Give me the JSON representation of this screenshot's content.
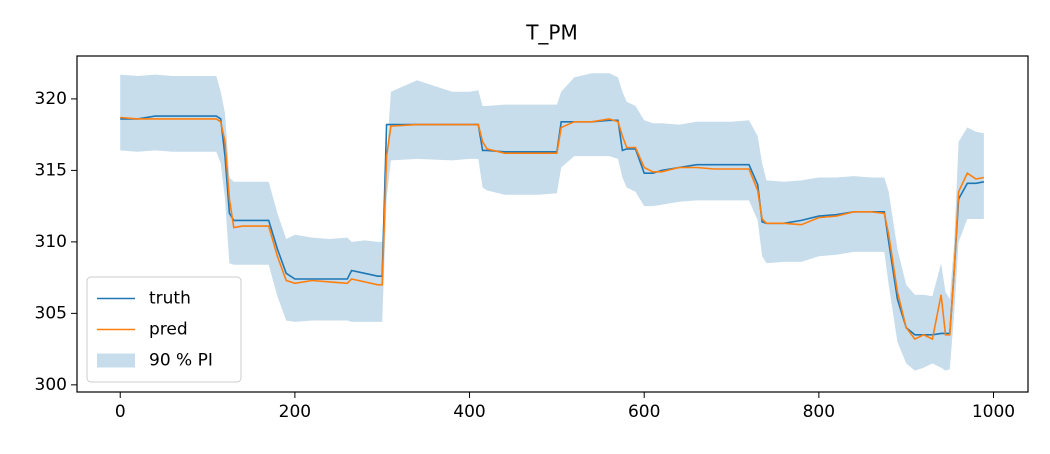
{
  "chart_data": {
    "type": "line",
    "title": "T_PM",
    "x": [
      0,
      20,
      40,
      60,
      80,
      100,
      110,
      115,
      120,
      125,
      130,
      140,
      160,
      170,
      180,
      190,
      200,
      220,
      240,
      260,
      265,
      280,
      295,
      300,
      305,
      310,
      340,
      380,
      400,
      410,
      415,
      420,
      440,
      480,
      500,
      505,
      520,
      540,
      560,
      570,
      575,
      580,
      590,
      600,
      610,
      620,
      640,
      660,
      680,
      700,
      720,
      730,
      735,
      740,
      760,
      780,
      800,
      820,
      840,
      860,
      875,
      880,
      890,
      900,
      910,
      920,
      930,
      940,
      945,
      950,
      955,
      960,
      970,
      980,
      989
    ],
    "series": [
      {
        "name": "truth",
        "color": "#1f77b4",
        "values": [
          318.6,
          318.6,
          318.8,
          318.8,
          318.8,
          318.8,
          318.8,
          318.6,
          316,
          312,
          311.5,
          311.5,
          311.5,
          311.5,
          309.5,
          307.8,
          307.4,
          307.4,
          307.4,
          307.4,
          308.0,
          307.8,
          307.6,
          307.6,
          318.2,
          318.2,
          318.2,
          318.2,
          318.2,
          318.2,
          316.4,
          316.4,
          316.3,
          316.3,
          316.3,
          318.4,
          318.4,
          318.4,
          318.5,
          318.5,
          316.4,
          316.5,
          316.5,
          314.8,
          314.8,
          315.0,
          315.2,
          315.4,
          315.4,
          315.4,
          315.4,
          314,
          311.4,
          311.3,
          311.3,
          311.5,
          311.8,
          311.9,
          312.1,
          312.1,
          312.1,
          310,
          306,
          304,
          303.5,
          303.5,
          303.5,
          303.6,
          303.6,
          303.6,
          308,
          313,
          314.1,
          314.1,
          314.2
        ]
      },
      {
        "name": "pred",
        "color": "#ff7f0e",
        "values": [
          318.7,
          318.6,
          318.6,
          318.6,
          318.6,
          318.6,
          318.6,
          318.4,
          317,
          313,
          311,
          311.1,
          311.1,
          311.1,
          309,
          307.3,
          307.1,
          307.3,
          307.2,
          307.1,
          307.4,
          307.2,
          307.0,
          307.0,
          316,
          318.1,
          318.2,
          318.2,
          318.2,
          318.2,
          317,
          316.5,
          316.2,
          316.2,
          316.2,
          318.0,
          318.4,
          318.4,
          318.6,
          318.4,
          317.4,
          316.6,
          316.6,
          315.2,
          314.9,
          314.9,
          315.2,
          315.2,
          315.1,
          315.1,
          315.1,
          313.6,
          311.6,
          311.3,
          311.3,
          311.2,
          311.7,
          311.8,
          312.1,
          312.1,
          312.0,
          310.5,
          306.5,
          304,
          303.2,
          303.5,
          303.2,
          306.3,
          303.5,
          303.5,
          308,
          313.5,
          314.8,
          314.4,
          314.5
        ]
      }
    ],
    "band": {
      "name": "90 % PI",
      "color": "#1f77b4",
      "upper": [
        321.7,
        321.6,
        321.7,
        321.6,
        321.6,
        321.6,
        321.6,
        320.5,
        319,
        314.5,
        314.2,
        314.2,
        314.2,
        314.2,
        312,
        310.2,
        310.5,
        310.3,
        310.2,
        310.3,
        310.0,
        310.1,
        310.0,
        310.0,
        316,
        320.5,
        321.3,
        320.5,
        320.5,
        320.6,
        319.5,
        319.5,
        319.6,
        319.6,
        319.6,
        320.5,
        321.5,
        321.8,
        321.8,
        321.5,
        320.5,
        319.8,
        319.5,
        318.5,
        318.3,
        318.3,
        318.2,
        318.4,
        318.4,
        318.4,
        318.5,
        317.4,
        315.5,
        314.3,
        314.2,
        314.3,
        314.5,
        314.5,
        314.6,
        314.5,
        314.5,
        313.5,
        309.5,
        307,
        306.3,
        306.3,
        306.2,
        308.5,
        306.5,
        306,
        310,
        317,
        318.0,
        317.7,
        317.6
      ],
      "lower": [
        316.4,
        316.3,
        316.4,
        316.3,
        316.3,
        316.3,
        316.3,
        315.5,
        313,
        308.5,
        308.4,
        308.4,
        308.4,
        308.4,
        306.2,
        304.5,
        304.4,
        304.5,
        304.5,
        304.5,
        304.4,
        304.4,
        304.4,
        304.4,
        313,
        315.7,
        315.8,
        315.7,
        315.8,
        315.8,
        313.8,
        313.6,
        313.3,
        313.3,
        313.4,
        315.2,
        316.0,
        316.0,
        316.0,
        315.8,
        314.5,
        313.8,
        313.5,
        312.5,
        312.5,
        312.6,
        312.8,
        312.9,
        312.9,
        312.9,
        312.9,
        311.5,
        309,
        308.5,
        308.6,
        308.6,
        309.0,
        309.1,
        309.3,
        309.3,
        309.3,
        307,
        303,
        301.5,
        301.0,
        301.2,
        301.5,
        301.2,
        301,
        301.1,
        305,
        310,
        311.6,
        311.6,
        311.6
      ]
    },
    "xlim": [
      -49.5,
      1039.5
    ],
    "ylim": [
      299.5,
      323.0
    ],
    "xticks": [
      0,
      200,
      400,
      600,
      800,
      1000
    ],
    "yticks": [
      300,
      305,
      310,
      315,
      320
    ],
    "grid": false,
    "legend": "lower left"
  }
}
